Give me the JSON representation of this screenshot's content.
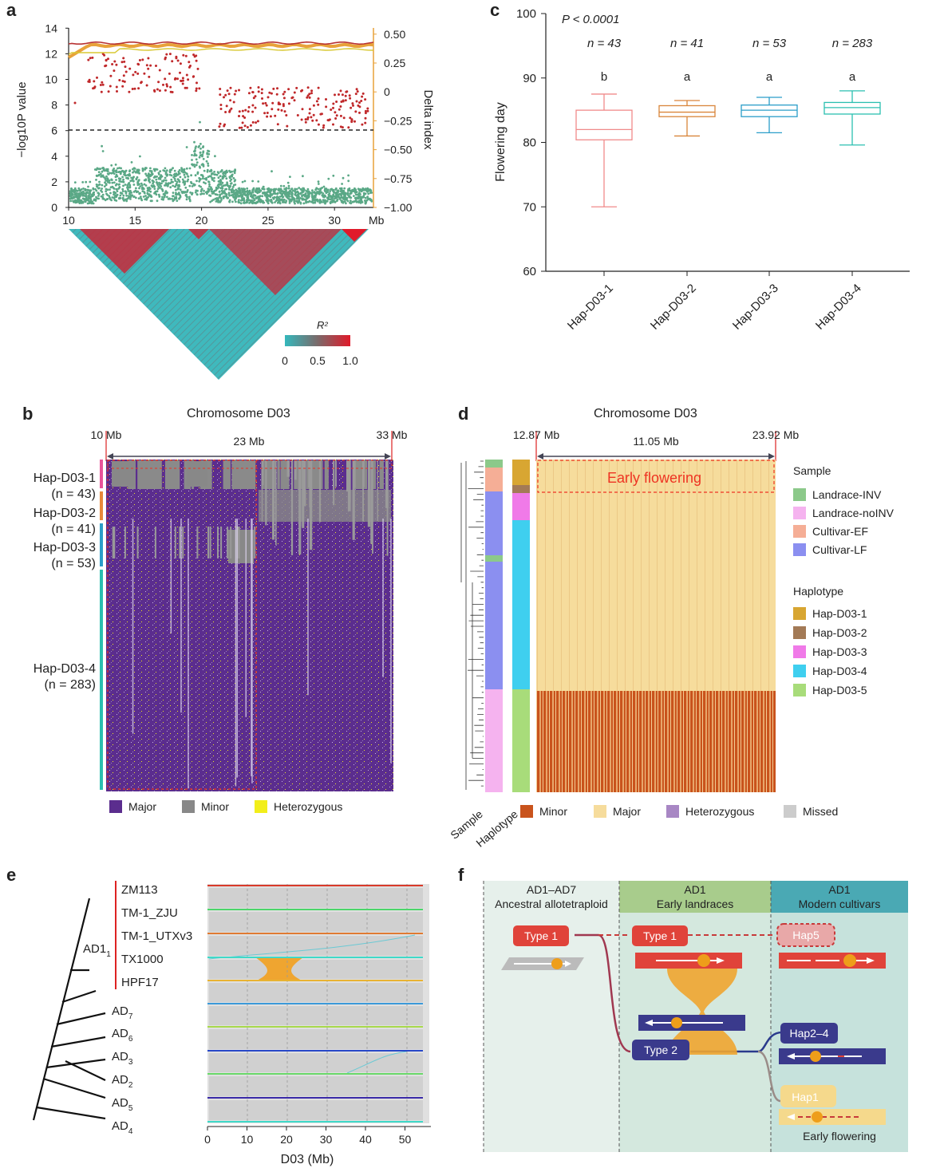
{
  "panels": {
    "a": "a",
    "b": "b",
    "c": "c",
    "d": "d",
    "e": "e",
    "f": "f"
  },
  "panel_a": {
    "left_axis_label": "−log10P value",
    "right_axis_label": "Delta index",
    "left_ticks": [
      "0",
      "2",
      "4",
      "6",
      "8",
      "10",
      "12",
      "14"
    ],
    "right_ticks": [
      "−1.00",
      "−0.75",
      "−0.50",
      "−0.25",
      "0",
      "0.25",
      "0.50"
    ],
    "x_ticks": [
      "10",
      "15",
      "20",
      "25",
      "30"
    ],
    "x_unit": "Mb",
    "threshold": 6,
    "ld_label": "R²",
    "ld_ticks": [
      "0",
      "0.5",
      "1.0"
    ],
    "colors": {
      "points_low": "#5aa886",
      "points_high": "#c0282a",
      "line_delta": "#e8a23a"
    }
  },
  "chart_data": [
    {
      "type": "box",
      "title": "",
      "ylabel": "Flowering day",
      "ylim": [
        60,
        100
      ],
      "yticks": [
        60,
        70,
        80,
        90,
        100
      ],
      "pvalue": "P < 0.0001",
      "categories": [
        "Hap-D03-1",
        "Hap-D03-2",
        "Hap-D03-3",
        "Hap-D03-4"
      ],
      "n_labels": [
        "n = 43",
        "n = 41",
        "n = 53",
        "n = 283"
      ],
      "letters": [
        "b",
        "a",
        "a",
        "a"
      ],
      "boxes": [
        {
          "min": 70,
          "q1": 80.4,
          "median": 82,
          "q3": 85,
          "max": 87.5,
          "color": "#f08a8a"
        },
        {
          "min": 81,
          "q1": 84,
          "median": 84.7,
          "q3": 85.7,
          "max": 86.5,
          "color": "#d9853a"
        },
        {
          "min": 81.5,
          "q1": 84,
          "median": 85,
          "q3": 85.8,
          "max": 87,
          "color": "#2b9ec9"
        },
        {
          "min": 79.6,
          "q1": 84.4,
          "median": 85.4,
          "q3": 86.2,
          "max": 88,
          "color": "#2bbfb0"
        }
      ]
    }
  ],
  "panel_b": {
    "title": "Chromosome D03",
    "start": "10 Mb",
    "end": "33 Mb",
    "span": "23 Mb",
    "groups": [
      {
        "name": "Hap-D03-1",
        "n": "(n = 43)",
        "color": "#e8559a"
      },
      {
        "name": "Hap-D03-2",
        "n": "(n = 41)",
        "color": "#e8893a"
      },
      {
        "name": "Hap-D03-3",
        "n": "(n = 53)",
        "color": "#2b9ec9"
      },
      {
        "name": "Hap-D03-4",
        "n": "(n = 283)",
        "color": "#2bbfb0"
      }
    ],
    "legend": [
      {
        "label": "Major",
        "color": "#5b2d8e"
      },
      {
        "label": "Minor",
        "color": "#888888"
      },
      {
        "label": "Heterozygous",
        "color": "#f2ee1a"
      }
    ]
  },
  "panel_d": {
    "title": "Chromosome D03",
    "start": "12.87 Mb",
    "end": "23.92 Mb",
    "span": "11.05 Mb",
    "early_flowering": "Early flowering",
    "track_labels": [
      "Sample",
      "Haplotype"
    ],
    "sample_title": "Sample",
    "sample_legend": [
      {
        "label": "Landrace-INV",
        "color": "#8cc98a"
      },
      {
        "label": "Landrace-noINV",
        "color": "#f5b3ef"
      },
      {
        "label": "Cultivar-EF",
        "color": "#f5ae96"
      },
      {
        "label": "Cultivar-LF",
        "color": "#8b8ff0"
      }
    ],
    "haplotype_title": "Haplotype",
    "haplotype_legend": [
      {
        "label": "Hap-D03-1",
        "color": "#d8a632"
      },
      {
        "label": "Hap-D03-2",
        "color": "#a37a56"
      },
      {
        "label": "Hap-D03-3",
        "color": "#f07ae8"
      },
      {
        "label": "Hap-D03-4",
        "color": "#3fcfef"
      },
      {
        "label": "Hap-D03-5",
        "color": "#a8dc7a"
      }
    ],
    "bottom_legend": [
      {
        "label": "Minor",
        "color": "#c9531c"
      },
      {
        "label": "Major",
        "color": "#f6dc9c"
      },
      {
        "label": "Heterozygous",
        "color": "#a887c4"
      },
      {
        "label": "Missed",
        "color": "#cccccc"
      }
    ]
  },
  "panel_e": {
    "ad1_label": "AD1",
    "ad1_sub": "1",
    "ad1_genomes": [
      "ZM113",
      "TM-1_ZJU",
      "TM-1_UTXv3",
      "TX1000",
      "HPF17"
    ],
    "others": [
      {
        "main": "AD",
        "sub": "7"
      },
      {
        "main": "AD",
        "sub": "6"
      },
      {
        "main": "AD",
        "sub": "3"
      },
      {
        "main": "AD",
        "sub": "2"
      },
      {
        "main": "AD",
        "sub": "5"
      },
      {
        "main": "AD",
        "sub": "4"
      }
    ],
    "line_colors": [
      "#d93a2a",
      "#4cd56a",
      "#e07a32",
      "#3fd9c8",
      "#e8b332",
      "#3c9ad9",
      "#a8d94c",
      "#2848c8",
      "#6ad96a",
      "#3a2aa8",
      "#3fd9c8"
    ],
    "x_ticks": [
      "0",
      "10",
      "20",
      "30",
      "40",
      "50"
    ],
    "xlabel": "D03 (Mb)"
  },
  "panel_f": {
    "col1": {
      "line1": "AD1–AD7",
      "line2": "Ancestral allotetraploid"
    },
    "col2": {
      "line1": "AD1",
      "line2": "Early landraces"
    },
    "col3": {
      "line1": "AD1",
      "line2": "Modern cultivars"
    },
    "type1": "Type 1",
    "type1b": "Type 1",
    "type2": "Type 2",
    "hap5": "Hap5",
    "hap24": "Hap2–4",
    "hap1": "Hap1",
    "early": "Early flowering"
  }
}
